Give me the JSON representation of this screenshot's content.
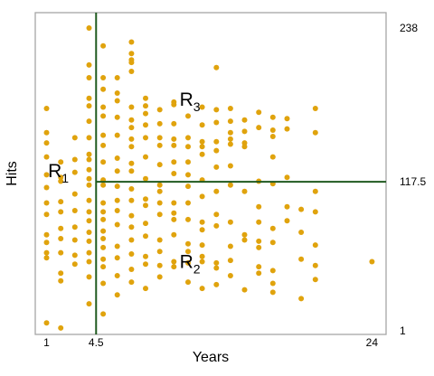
{
  "chart_data": {
    "type": "scatter",
    "xlabel": "Years",
    "ylabel": "Hits",
    "x_ticks": [
      {
        "value": 1,
        "label": "1"
      },
      {
        "value": 4.5,
        "label": "4.5"
      },
      {
        "value": 24,
        "label": "24"
      }
    ],
    "y_ticks": [
      {
        "value": 238,
        "label": "238"
      },
      {
        "value": 117.5,
        "label": "117.5"
      },
      {
        "value": 1,
        "label": "1"
      }
    ],
    "xlim": [
      0.2,
      25
    ],
    "ylim": [
      -2,
      250
    ],
    "grid": false,
    "color": "#e0a30d",
    "split_color": "#1f5a1f",
    "splits": [
      {
        "axis": "x",
        "value": 4.5,
        "y_from": -2,
        "y_to": 250
      },
      {
        "axis": "y",
        "value": 117.5,
        "x_from": 4.5,
        "x_to": 25
      }
    ],
    "regions": [
      {
        "main": "R",
        "sub": "1",
        "x": 1.1,
        "y": 121
      },
      {
        "main": "R",
        "sub": "2",
        "x": 10.4,
        "y": 50
      },
      {
        "main": "R",
        "sub": "3",
        "x": 10.4,
        "y": 177
      }
    ],
    "points": [
      [
        1,
        7
      ],
      [
        1,
        175
      ],
      [
        1,
        156
      ],
      [
        1,
        148
      ],
      [
        1,
        137
      ],
      [
        1,
        123
      ],
      [
        1,
        113
      ],
      [
        1,
        101
      ],
      [
        1,
        92
      ],
      [
        1,
        76
      ],
      [
        1,
        70
      ],
      [
        1,
        62
      ],
      [
        1,
        58
      ],
      [
        2,
        3
      ],
      [
        2,
        133
      ],
      [
        2,
        121
      ],
      [
        2,
        118
      ],
      [
        2,
        102
      ],
      [
        2,
        94
      ],
      [
        2,
        81
      ],
      [
        2,
        73
      ],
      [
        2,
        62
      ],
      [
        2,
        46
      ],
      [
        2,
        40
      ],
      [
        3,
        152
      ],
      [
        3,
        135
      ],
      [
        3,
        125
      ],
      [
        3,
        108
      ],
      [
        3,
        95
      ],
      [
        3,
        82
      ],
      [
        3,
        72
      ],
      [
        3,
        60
      ],
      [
        3,
        53
      ],
      [
        4,
        139
      ],
      [
        4,
        135
      ],
      [
        4,
        127
      ],
      [
        4,
        120
      ],
      [
        4,
        115
      ],
      [
        4,
        103
      ],
      [
        4,
        94
      ],
      [
        4,
        87
      ],
      [
        4,
        78
      ],
      [
        4,
        71
      ],
      [
        4,
        62
      ],
      [
        4,
        55
      ],
      [
        4,
        43
      ],
      [
        4,
        22
      ],
      [
        4,
        152
      ],
      [
        4,
        165
      ],
      [
        4,
        177
      ],
      [
        4,
        183
      ],
      [
        4,
        199
      ],
      [
        4,
        209
      ],
      [
        4,
        238
      ],
      [
        5,
        154
      ],
      [
        5,
        146
      ],
      [
        5,
        133
      ],
      [
        5,
        119
      ],
      [
        5,
        115
      ],
      [
        5,
        101
      ],
      [
        5,
        94
      ],
      [
        5,
        88
      ],
      [
        5,
        79
      ],
      [
        5,
        73
      ],
      [
        5,
        66
      ],
      [
        5,
        57
      ],
      [
        5,
        51
      ],
      [
        5,
        38
      ],
      [
        5,
        14
      ],
      [
        5,
        169
      ],
      [
        5,
        176
      ],
      [
        5,
        190
      ],
      [
        5,
        199
      ],
      [
        5,
        224
      ],
      [
        6,
        136
      ],
      [
        6,
        126
      ],
      [
        6,
        114
      ],
      [
        6,
        103
      ],
      [
        6,
        95
      ],
      [
        6,
        84
      ],
      [
        6,
        67
      ],
      [
        6,
        58
      ],
      [
        6,
        44
      ],
      [
        6,
        29
      ],
      [
        6,
        154
      ],
      [
        6,
        168
      ],
      [
        6,
        181
      ],
      [
        6,
        187
      ],
      [
        6,
        199
      ],
      [
        7,
        145
      ],
      [
        7,
        132
      ],
      [
        7,
        126
      ],
      [
        7,
        112
      ],
      [
        7,
        103
      ],
      [
        7,
        91
      ],
      [
        7,
        82
      ],
      [
        7,
        72
      ],
      [
        7,
        61
      ],
      [
        7,
        49
      ],
      [
        7,
        39
      ],
      [
        7,
        151
      ],
      [
        7,
        160
      ],
      [
        7,
        166
      ],
      [
        7,
        176
      ],
      [
        7,
        204
      ],
      [
        7,
        211
      ],
      [
        7,
        213
      ],
      [
        7,
        218
      ],
      [
        7,
        227
      ],
      [
        8,
        137
      ],
      [
        8,
        120
      ],
      [
        8,
        104
      ],
      [
        8,
        99
      ],
      [
        8,
        85
      ],
      [
        8,
        75
      ],
      [
        8,
        59
      ],
      [
        8,
        53
      ],
      [
        8,
        34
      ],
      [
        8,
        152
      ],
      [
        8,
        162
      ],
      [
        8,
        171
      ],
      [
        8,
        177
      ],
      [
        8,
        183
      ],
      [
        9,
        131
      ],
      [
        9,
        115
      ],
      [
        9,
        110
      ],
      [
        9,
        101
      ],
      [
        9,
        92
      ],
      [
        9,
        72
      ],
      [
        9,
        63
      ],
      [
        9,
        52
      ],
      [
        9,
        43
      ],
      [
        9,
        146
      ],
      [
        9,
        152
      ],
      [
        9,
        163
      ],
      [
        9,
        174
      ],
      [
        10,
        146
      ],
      [
        10,
        133
      ],
      [
        10,
        124
      ],
      [
        10,
        101
      ],
      [
        10,
        93
      ],
      [
        10,
        88
      ],
      [
        10,
        76
      ],
      [
        10,
        55
      ],
      [
        10,
        51
      ],
      [
        10,
        151
      ],
      [
        10,
        163
      ],
      [
        10,
        178
      ],
      [
        10,
        180
      ],
      [
        11,
        152
      ],
      [
        11,
        123
      ],
      [
        11,
        114
      ],
      [
        11,
        101
      ],
      [
        11,
        88
      ],
      [
        11,
        69
      ],
      [
        11,
        63
      ],
      [
        11,
        54
      ],
      [
        11,
        39
      ],
      [
        11,
        133
      ],
      [
        11,
        145
      ],
      [
        11,
        169
      ],
      [
        12,
        145
      ],
      [
        12,
        119
      ],
      [
        12,
        106
      ],
      [
        12,
        86
      ],
      [
        12,
        80
      ],
      [
        12,
        68
      ],
      [
        12,
        59
      ],
      [
        12,
        55
      ],
      [
        12,
        34
      ],
      [
        12,
        139
      ],
      [
        12,
        149
      ],
      [
        12,
        162
      ],
      [
        12,
        176
      ],
      [
        13,
        129
      ],
      [
        13,
        110
      ],
      [
        13,
        92
      ],
      [
        13,
        83
      ],
      [
        13,
        54
      ],
      [
        13,
        50
      ],
      [
        13,
        37
      ],
      [
        13,
        142
      ],
      [
        13,
        149
      ],
      [
        13,
        164
      ],
      [
        13,
        174
      ],
      [
        13,
        207
      ],
      [
        14,
        151
      ],
      [
        14,
        130
      ],
      [
        14,
        115
      ],
      [
        14,
        86
      ],
      [
        14,
        67
      ],
      [
        14,
        56
      ],
      [
        14,
        44
      ],
      [
        14,
        147
      ],
      [
        14,
        156
      ],
      [
        14,
        165
      ],
      [
        14,
        175
      ],
      [
        15,
        148
      ],
      [
        15,
        110
      ],
      [
        15,
        76
      ],
      [
        15,
        72
      ],
      [
        15,
        33
      ],
      [
        15,
        145
      ],
      [
        15,
        157
      ],
      [
        15,
        166
      ],
      [
        16,
        160
      ],
      [
        16,
        118
      ],
      [
        16,
        98
      ],
      [
        16,
        86
      ],
      [
        16,
        71
      ],
      [
        16,
        66
      ],
      [
        16,
        51
      ],
      [
        16,
        46
      ],
      [
        16,
        172
      ],
      [
        17,
        137
      ],
      [
        17,
        116
      ],
      [
        17,
        81
      ],
      [
        17,
        70
      ],
      [
        17,
        48
      ],
      [
        17,
        38
      ],
      [
        17,
        31
      ],
      [
        17,
        153
      ],
      [
        17,
        158
      ],
      [
        17,
        168
      ],
      [
        18,
        159
      ],
      [
        18,
        121
      ],
      [
        18,
        98
      ],
      [
        18,
        87
      ],
      [
        18,
        167
      ],
      [
        19,
        96
      ],
      [
        19,
        78
      ],
      [
        19,
        57
      ],
      [
        19,
        26
      ],
      [
        20,
        156
      ],
      [
        20,
        110
      ],
      [
        20,
        94
      ],
      [
        20,
        68
      ],
      [
        20,
        52
      ],
      [
        20,
        41
      ],
      [
        20,
        175
      ],
      [
        24,
        55
      ]
    ]
  }
}
